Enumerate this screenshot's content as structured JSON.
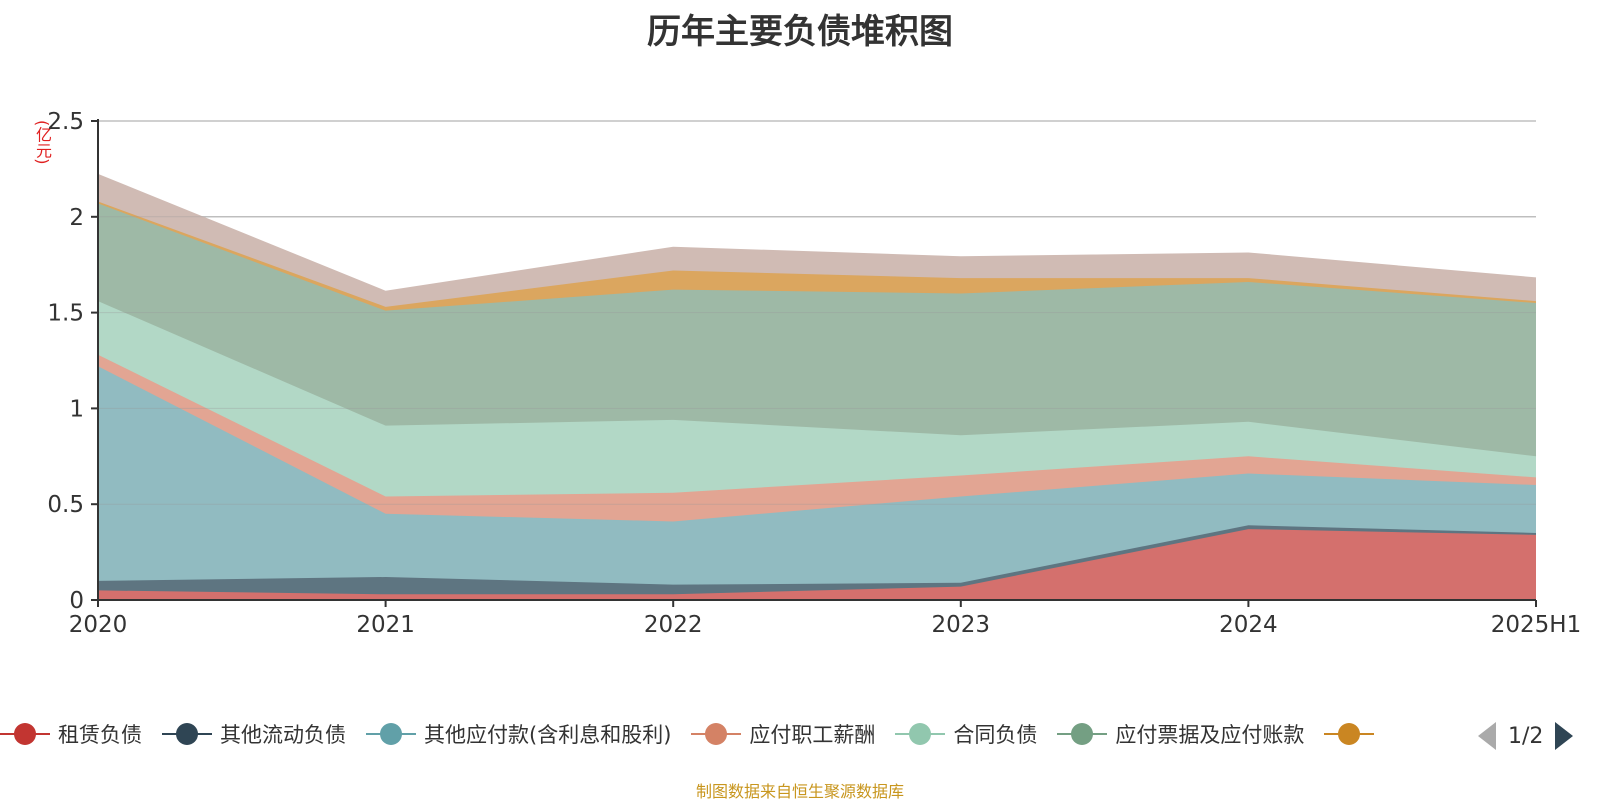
{
  "chart_data": {
    "type": "area",
    "stacked": true,
    "title": "历年主要负债堆积图",
    "unit_label": "(亿元)",
    "categories": [
      "2020",
      "2021",
      "2022",
      "2023",
      "2024",
      "2025H1"
    ],
    "ylim": [
      0,
      2.5
    ],
    "yticks": [
      "0",
      "0.5",
      "1",
      "1.5",
      "2",
      "2.5"
    ],
    "grid": true,
    "legend_position": "bottom",
    "series": [
      {
        "name": "租赁负债",
        "color": "#c23531",
        "area_color": "#d4706d",
        "values": [
          0.05,
          0.03,
          0.03,
          0.07,
          0.37,
          0.34
        ]
      },
      {
        "name": "其他流动负债",
        "color": "#2f4554",
        "area_color": "#5e7581",
        "values": [
          0.05,
          0.09,
          0.05,
          0.02,
          0.02,
          0.01
        ]
      },
      {
        "name": "其他应付款(含利息和股利)",
        "color": "#61a0a8",
        "area_color": "#91bbc1",
        "values": [
          1.12,
          0.33,
          0.33,
          0.45,
          0.27,
          0.25
        ]
      },
      {
        "name": "应付职工薪酬",
        "color": "#d48265",
        "area_color": "#e2a593",
        "values": [
          0.06,
          0.09,
          0.15,
          0.11,
          0.09,
          0.04
        ]
      },
      {
        "name": "合同负债",
        "color": "#91c7ae",
        "area_color": "#b2d8c6",
        "values": [
          0.28,
          0.37,
          0.38,
          0.21,
          0.18,
          0.11
        ]
      },
      {
        "name": "应付票据及应付账款",
        "color": "#749f83",
        "area_color": "#9eb9a6",
        "values": [
          0.51,
          0.6,
          0.68,
          0.74,
          0.73,
          0.8
        ]
      },
      {
        "name": "",
        "color": "#ca8622",
        "area_color": "#dba65f",
        "values": [
          0.01,
          0.02,
          0.1,
          0.08,
          0.02,
          0.01
        ]
      },
      {
        "name": "",
        "color": "#bda29a",
        "area_color": "#d0bbb4",
        "values": [
          0.14,
          0.08,
          0.12,
          0.11,
          0.13,
          0.12
        ]
      }
    ]
  },
  "legend": {
    "items": [
      {
        "label": "租赁负债",
        "color": "#c23531"
      },
      {
        "label": "其他流动负债",
        "color": "#2f4554"
      },
      {
        "label": "其他应付款(含利息和股利)",
        "color": "#61a0a8"
      },
      {
        "label": "应付职工薪酬",
        "color": "#d48265"
      },
      {
        "label": "合同负债",
        "color": "#91c7ae"
      },
      {
        "label": "应付票据及应付账款",
        "color": "#749f83"
      },
      {
        "label": "",
        "color": "#ca8622"
      }
    ],
    "page_indicator": "1/2"
  },
  "footer": "制图数据来自恒生聚源数据库"
}
